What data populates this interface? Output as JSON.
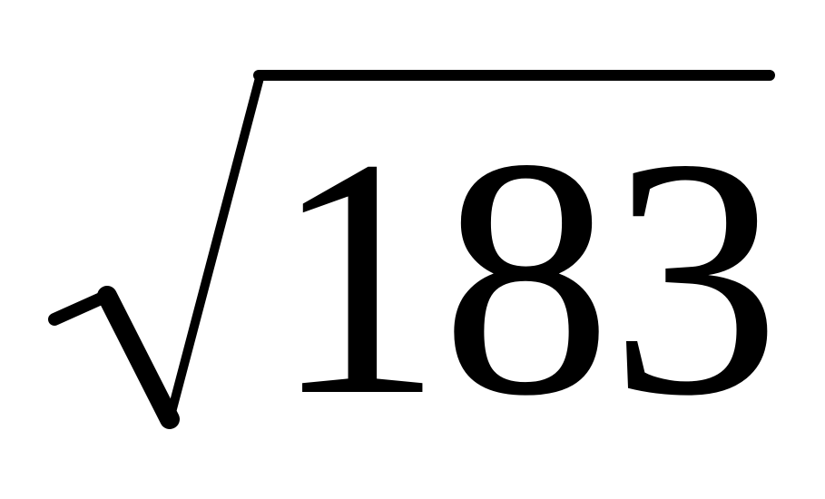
{
  "expression": {
    "radicand": "183",
    "symbol": "square-root",
    "ink_color": "#000000",
    "background_color": "#ffffff"
  }
}
